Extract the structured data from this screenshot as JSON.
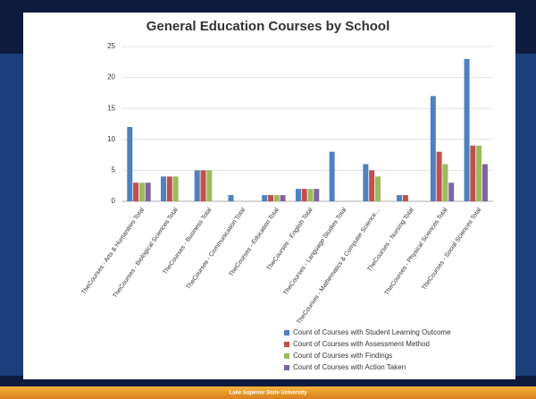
{
  "footer": "Lake Superior State University",
  "chart_data": {
    "type": "bar",
    "title": "General Education Courses by School",
    "categories": [
      "TheCourses - Arts & Humanities Total",
      "TheCourses - Biological Sciences Total",
      "TheCourses - Business Total",
      "TheCourses - Communication Total",
      "TheCourses - Education Total",
      "TheCourses - English Total",
      "TheCourses - Language Studies Total",
      "TheCourses - Mathematics & Computer Science…",
      "TheCourses - Nursing Total",
      "TheCourses - Physical Sciences Total",
      "TheCourses - Social Sciences Total"
    ],
    "series": [
      {
        "name": "Count of Courses with  Student Learning Outcome",
        "color": "#4f81bd",
        "values": [
          12,
          4,
          5,
          1,
          1,
          2,
          8,
          6,
          1,
          17,
          23
        ]
      },
      {
        "name": "Count of Courses with Assessment Method",
        "color": "#c0504d",
        "values": [
          3,
          4,
          5,
          0,
          1,
          2,
          0,
          5,
          1,
          8,
          9
        ]
      },
      {
        "name": "Count of Courses with Findings",
        "color": "#9bbb59",
        "values": [
          3,
          4,
          5,
          0,
          1,
          2,
          0,
          4,
          0,
          6,
          9
        ]
      },
      {
        "name": "Count of Courses with  Action Taken",
        "color": "#8064a2",
        "values": [
          3,
          0,
          0,
          0,
          1,
          2,
          0,
          0,
          0,
          3,
          6
        ]
      }
    ],
    "ylim": [
      0,
      25
    ],
    "yticks": [
      0,
      5,
      10,
      15,
      20,
      25
    ],
    "grid": true,
    "legend": "bottom-right"
  }
}
